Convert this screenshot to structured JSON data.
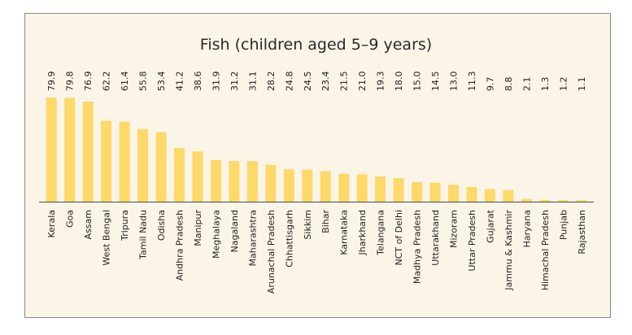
{
  "chart_data": {
    "type": "bar",
    "title": "Fish (children aged 5–9 years)",
    "xlabel": "",
    "ylabel": "",
    "ylim": [
      0,
      80
    ],
    "bar_color": "#fcd968",
    "axis_color": "#4a4a4a",
    "categories": [
      "Kerala",
      "Goa",
      "Assam",
      "West Bengal",
      "Tripura",
      "Tamil Nadu",
      "Odisha",
      "Andhra Pradesh",
      "Manipur",
      "Meghalaya",
      "Nagaland",
      "Maharashtra",
      "Arunachal Pradesh",
      "Chhattisgarh",
      "Sikkim",
      "Bihar",
      "Karnataka",
      "Jharkhand",
      "Telangana",
      "NCT of Delhi",
      "Madhya Pradesh",
      "Uttarakhand",
      "Mizoram",
      "Uttar Pradesh",
      "Gujarat",
      "Jammu & Kashmir",
      "Haryana",
      "Himachal Pradesh",
      "Punjab",
      "Rajasthan"
    ],
    "values": [
      79.9,
      79.8,
      76.9,
      62.2,
      61.4,
      55.8,
      53.4,
      41.2,
      38.6,
      31.9,
      31.2,
      31.1,
      28.2,
      24.8,
      24.5,
      23.4,
      21.5,
      21.0,
      19.3,
      18.0,
      15.0,
      14.5,
      13.0,
      11.3,
      9.7,
      8.8,
      2.1,
      1.3,
      1.2,
      1.1
    ]
  }
}
